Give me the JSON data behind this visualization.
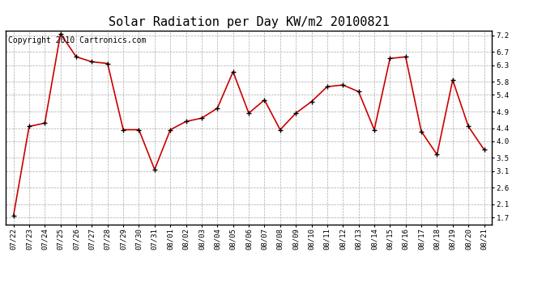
{
  "title": "Solar Radiation per Day KW/m2 20100821",
  "copyright": "Copyright 2010 Cartronics.com",
  "labels": [
    "07/22",
    "07/23",
    "07/24",
    "07/25",
    "07/26",
    "07/27",
    "07/28",
    "07/29",
    "07/30",
    "07/31",
    "08/01",
    "08/02",
    "08/03",
    "08/04",
    "08/05",
    "08/06",
    "08/07",
    "08/08",
    "08/09",
    "08/10",
    "08/11",
    "08/12",
    "08/13",
    "08/14",
    "08/15",
    "08/16",
    "08/17",
    "08/18",
    "08/19",
    "08/20",
    "08/21"
  ],
  "values": [
    1.75,
    4.45,
    4.55,
    7.25,
    6.55,
    6.4,
    6.35,
    4.35,
    4.35,
    3.15,
    4.35,
    4.6,
    4.7,
    5.0,
    6.1,
    4.85,
    5.25,
    4.35,
    4.85,
    5.2,
    5.65,
    5.7,
    5.5,
    4.35,
    6.5,
    6.55,
    4.3,
    3.6,
    5.85,
    4.45,
    3.75
  ],
  "yticks": [
    1.7,
    2.1,
    2.6,
    3.1,
    3.5,
    4.0,
    4.4,
    4.9,
    5.4,
    5.8,
    6.3,
    6.7,
    7.2
  ],
  "ylim": [
    1.5,
    7.35
  ],
  "line_color": "#cc0000",
  "marker_color": "#000000",
  "bg_color": "#ffffff",
  "grid_color": "#aaaaaa",
  "title_fontsize": 11,
  "tick_fontsize": 6.5,
  "copyright_fontsize": 7
}
